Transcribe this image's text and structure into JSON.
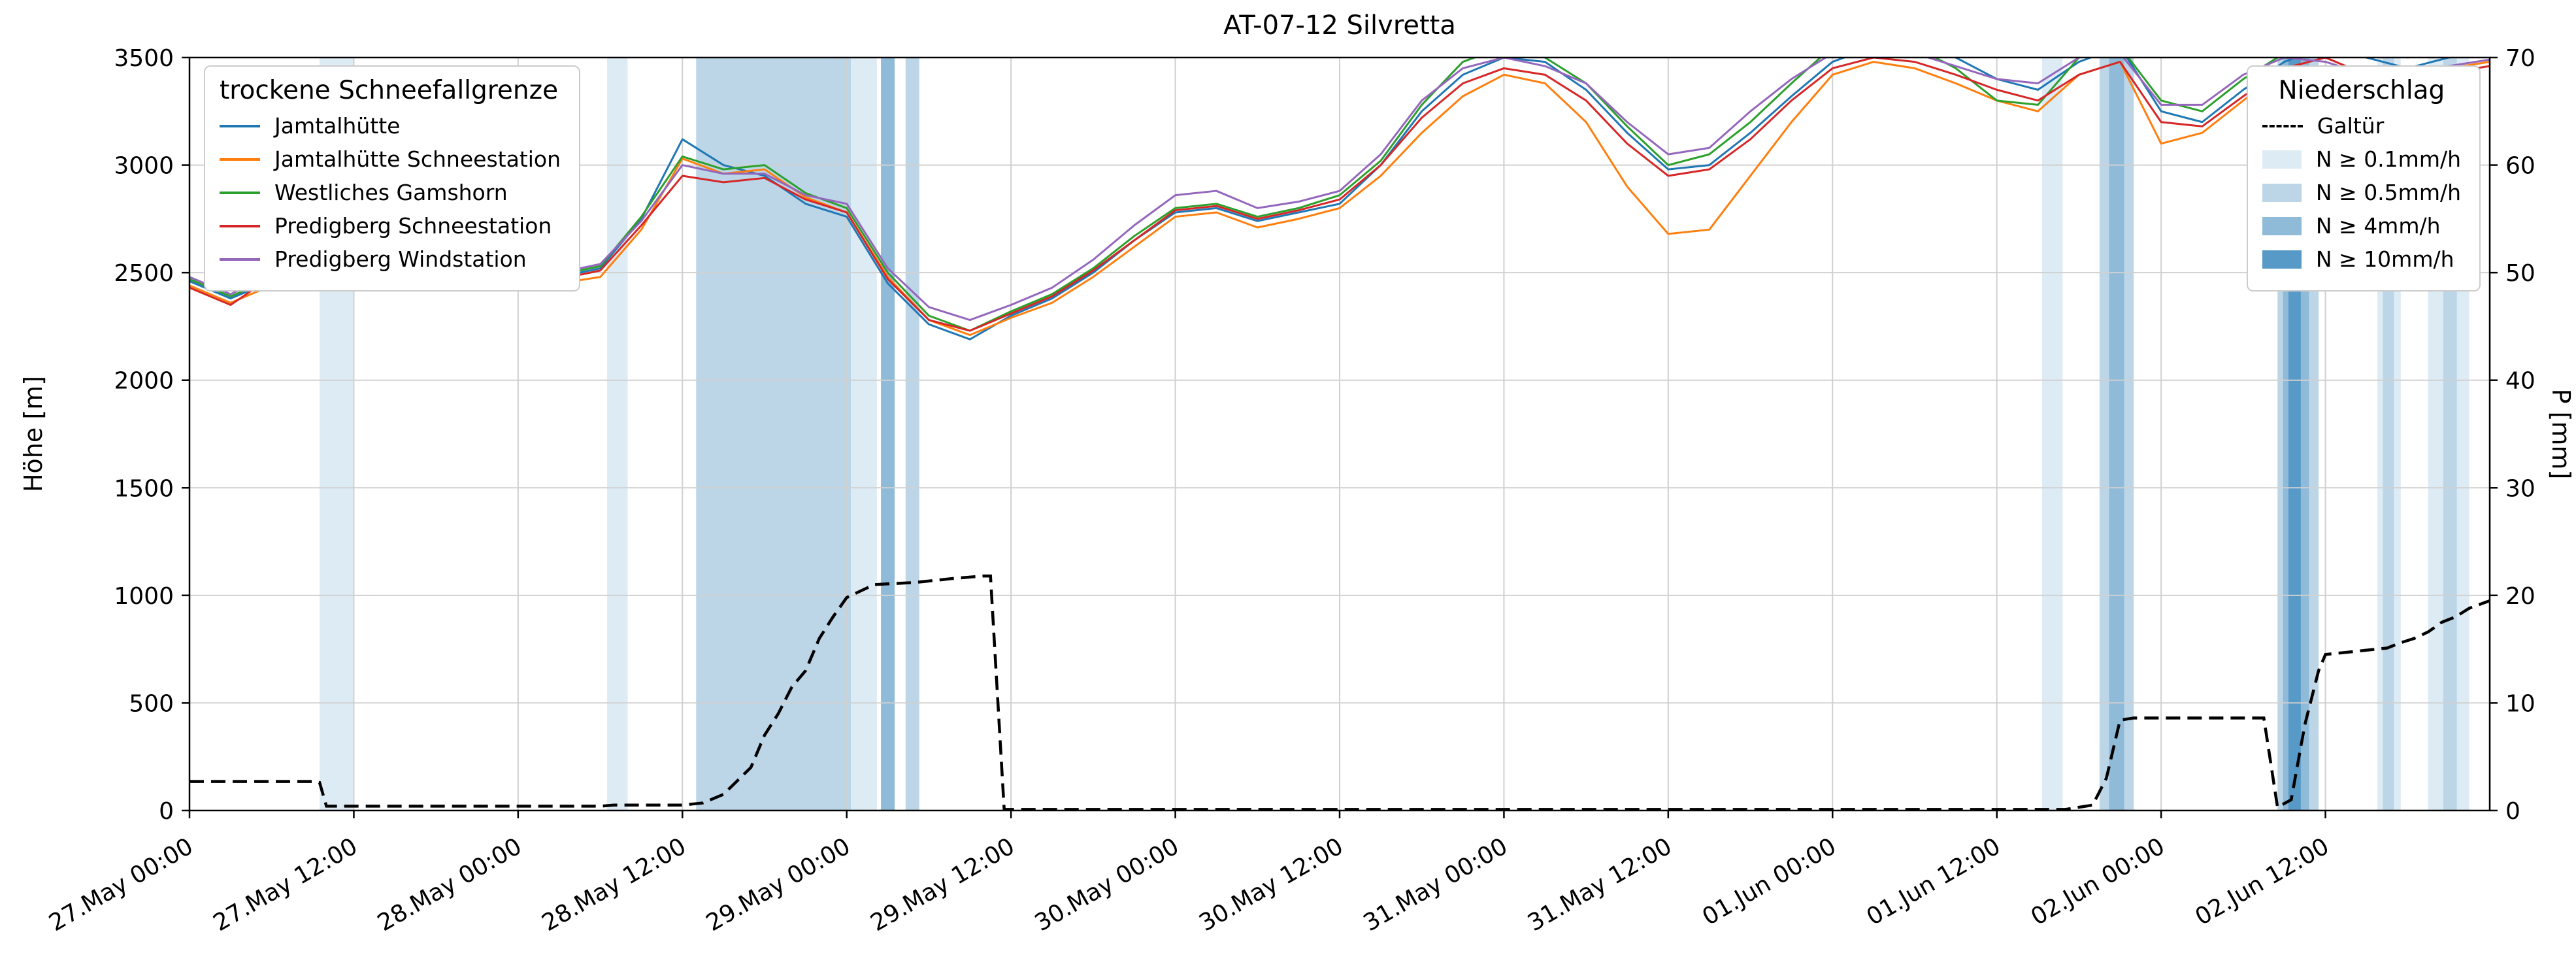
{
  "legends": {
    "snowline": {
      "title": "trockene Schneefallgrenze"
    },
    "precip": {
      "title": "Niederschlag"
    }
  },
  "chart_data": {
    "type": "line",
    "title": "AT-07-12 Silvretta",
    "ylabel_left": "Höhe [m]",
    "ylabel_right": "P [mm]",
    "x_unit": "hours since 27 May 00:00",
    "x_range": [
      0,
      168
    ],
    "grid": true,
    "y_left": {
      "range": [
        0,
        3500
      ],
      "ticks": [
        0,
        500,
        1000,
        1500,
        2000,
        2500,
        3000,
        3500
      ]
    },
    "y_right": {
      "range": [
        0,
        70
      ],
      "ticks": [
        0,
        10,
        20,
        30,
        40,
        50,
        60,
        70
      ]
    },
    "x_ticks": {
      "hours": [
        0,
        12,
        24,
        36,
        48,
        60,
        72,
        84,
        96,
        108,
        120,
        132,
        144,
        156
      ],
      "labels": [
        "27.May 00:00",
        "27.May 12:00",
        "28.May 00:00",
        "28.May 12:00",
        "29.May 00:00",
        "29.May 12:00",
        "30.May 00:00",
        "30.May 12:00",
        "31.May 00:00",
        "31.May 12:00",
        "01.Jun 00:00",
        "01.Jun 12:00",
        "02.Jun 00:00",
        "02.Jun 12:00"
      ]
    },
    "x_hours": [
      0,
      3,
      6,
      9,
      12,
      15,
      18,
      21,
      24,
      27,
      30,
      33,
      36,
      39,
      42,
      45,
      48,
      51,
      54,
      57,
      60,
      63,
      66,
      69,
      72,
      75,
      78,
      81,
      84,
      87,
      90,
      93,
      96,
      99,
      102,
      105,
      108,
      111,
      114,
      117,
      120,
      123,
      126,
      129,
      132,
      135,
      138,
      141,
      144,
      147,
      150,
      153,
      156,
      159,
      162,
      165,
      168
    ],
    "series": [
      {
        "name": "Jamtalhütte",
        "color": "#1f77b4",
        "values": [
          2460,
          2380,
          2460,
          2500,
          2470,
          2460,
          2450,
          2450,
          2470,
          2480,
          2520,
          2750,
          3120,
          3000,
          2950,
          2820,
          2760,
          2450,
          2260,
          2190,
          2300,
          2380,
          2500,
          2650,
          2780,
          2800,
          2740,
          2780,
          2820,
          3000,
          3250,
          3420,
          3500,
          3480,
          3350,
          3150,
          2980,
          3000,
          3150,
          3320,
          3480,
          3550,
          3550,
          3500,
          3400,
          3350,
          3480,
          3550,
          3250,
          3200,
          3350,
          3480,
          3550,
          3500,
          3450,
          3500,
          3520
        ]
      },
      {
        "name": "Jamtalhütte Schneestation",
        "color": "#ff7f0e",
        "values": [
          2440,
          2360,
          2440,
          2470,
          2450,
          2440,
          2430,
          2430,
          2440,
          2450,
          2480,
          2700,
          3030,
          2960,
          2980,
          2850,
          2780,
          2480,
          2280,
          2210,
          2290,
          2360,
          2480,
          2620,
          2760,
          2780,
          2710,
          2750,
          2800,
          2950,
          3150,
          3320,
          3420,
          3380,
          3200,
          2900,
          2680,
          2700,
          2950,
          3200,
          3420,
          3480,
          3450,
          3380,
          3300,
          3250,
          3420,
          3480,
          3100,
          3150,
          3300,
          3450,
          3500,
          3420,
          3380,
          3450,
          3480
        ]
      },
      {
        "name": "Westliches Gamshorn",
        "color": "#2ca02c",
        "values": [
          2470,
          2390,
          2470,
          2500,
          2480,
          2470,
          2460,
          2450,
          2470,
          2490,
          2530,
          2760,
          3040,
          2980,
          3000,
          2870,
          2800,
          2500,
          2300,
          2230,
          2320,
          2400,
          2520,
          2670,
          2800,
          2820,
          2760,
          2800,
          2860,
          3020,
          3280,
          3480,
          3550,
          3500,
          3380,
          3180,
          3000,
          3050,
          3200,
          3380,
          3550,
          3600,
          3550,
          3450,
          3300,
          3280,
          3500,
          3550,
          3300,
          3250,
          3400,
          3520,
          3600,
          3550,
          3500,
          3550,
          3580
        ]
      },
      {
        "name": "Predigberg Schneestation",
        "color": "#d62728",
        "values": [
          2430,
          2350,
          2480,
          2520,
          2460,
          2450,
          2440,
          2440,
          2460,
          2470,
          2510,
          2720,
          2950,
          2920,
          2940,
          2840,
          2780,
          2470,
          2280,
          2230,
          2310,
          2390,
          2510,
          2650,
          2790,
          2810,
          2750,
          2790,
          2840,
          3000,
          3220,
          3380,
          3450,
          3420,
          3300,
          3100,
          2950,
          2980,
          3120,
          3300,
          3450,
          3500,
          3480,
          3420,
          3350,
          3300,
          3420,
          3480,
          3200,
          3180,
          3320,
          3450,
          3500,
          3420,
          3380,
          3430,
          3460
        ]
      },
      {
        "name": "Predigberg Windstation",
        "color": "#9467bd",
        "values": [
          2480,
          2400,
          2490,
          2510,
          2480,
          2470,
          2460,
          2460,
          2480,
          2500,
          2540,
          2740,
          3000,
          2960,
          2960,
          2860,
          2820,
          2520,
          2340,
          2280,
          2350,
          2430,
          2560,
          2720,
          2860,
          2880,
          2800,
          2830,
          2880,
          3050,
          3300,
          3450,
          3500,
          3460,
          3380,
          3200,
          3050,
          3080,
          3250,
          3400,
          3520,
          3560,
          3520,
          3460,
          3400,
          3380,
          3500,
          3520,
          3280,
          3280,
          3420,
          3500,
          3480,
          3420,
          3400,
          3460,
          3490
        ]
      }
    ],
    "galtuer": {
      "name": "Galtür",
      "color": "#000000",
      "style": "dashed",
      "axis": "right",
      "points": [
        [
          0,
          2.7
        ],
        [
          9,
          2.7
        ],
        [
          9.5,
          2.6
        ],
        [
          10,
          0.4
        ],
        [
          30,
          0.4
        ],
        [
          31,
          0.5
        ],
        [
          36,
          0.5
        ],
        [
          37.5,
          0.7
        ],
        [
          39,
          1.5
        ],
        [
          41,
          4
        ],
        [
          42,
          7
        ],
        [
          43,
          9
        ],
        [
          44,
          11.5
        ],
        [
          45,
          13
        ],
        [
          46,
          16
        ],
        [
          47,
          18
        ],
        [
          48,
          19.8
        ],
        [
          50,
          21
        ],
        [
          53,
          21.2
        ],
        [
          56,
          21.6
        ],
        [
          58,
          21.8
        ],
        [
          58.5,
          21.8
        ],
        [
          59.5,
          0.1
        ],
        [
          137,
          0.1
        ],
        [
          139,
          0.5
        ],
        [
          140,
          3
        ],
        [
          141,
          8.4
        ],
        [
          142,
          8.6
        ],
        [
          151.5,
          8.6
        ],
        [
          152.5,
          0.3
        ],
        [
          153.5,
          1
        ],
        [
          154.5,
          8
        ],
        [
          155.5,
          13
        ],
        [
          156,
          14.5
        ],
        [
          157.5,
          14.7
        ],
        [
          159,
          14.9
        ],
        [
          160.5,
          15.1
        ],
        [
          161.5,
          15.6
        ],
        [
          162.5,
          16
        ],
        [
          163.5,
          16.6
        ],
        [
          164.5,
          17.5
        ],
        [
          165.5,
          18
        ],
        [
          166.5,
          18.8
        ],
        [
          168,
          19.5
        ]
      ]
    },
    "precip_levels": [
      {
        "level": "0.1",
        "label": "N ≥ 0.1mm/h",
        "color": "#ddebf4"
      },
      {
        "level": "0.5",
        "label": "N ≥ 0.5mm/h",
        "color": "#bcd6e8"
      },
      {
        "level": "4",
        "label": "N ≥ 4mm/h",
        "color": "#8fbbd9"
      },
      {
        "level": "10",
        "label": "N ≥ 10mm/h",
        "color": "#5799c7"
      }
    ],
    "precip_bands": [
      {
        "start": 9.5,
        "end": 12,
        "level": "0.1"
      },
      {
        "start": 30.5,
        "end": 32,
        "level": "0.1"
      },
      {
        "start": 37,
        "end": 48.3,
        "level": "0.5"
      },
      {
        "start": 48.3,
        "end": 50.2,
        "level": "0.1"
      },
      {
        "start": 50.5,
        "end": 51.5,
        "level": "4"
      },
      {
        "start": 52.3,
        "end": 53.3,
        "level": "0.5"
      },
      {
        "start": 135.3,
        "end": 136.8,
        "level": "0.1"
      },
      {
        "start": 139.5,
        "end": 142,
        "level": "0.5"
      },
      {
        "start": 140.2,
        "end": 141.3,
        "level": "4"
      },
      {
        "start": 152.5,
        "end": 155.5,
        "level": "0.5"
      },
      {
        "start": 152.9,
        "end": 154.8,
        "level": "4"
      },
      {
        "start": 153.3,
        "end": 154.2,
        "level": "10"
      },
      {
        "start": 159.8,
        "end": 161.5,
        "level": "0.1"
      },
      {
        "start": 160.2,
        "end": 161,
        "level": "0.5"
      },
      {
        "start": 163.5,
        "end": 166.5,
        "level": "0.1"
      },
      {
        "start": 164.6,
        "end": 165.6,
        "level": "0.5"
      }
    ]
  }
}
